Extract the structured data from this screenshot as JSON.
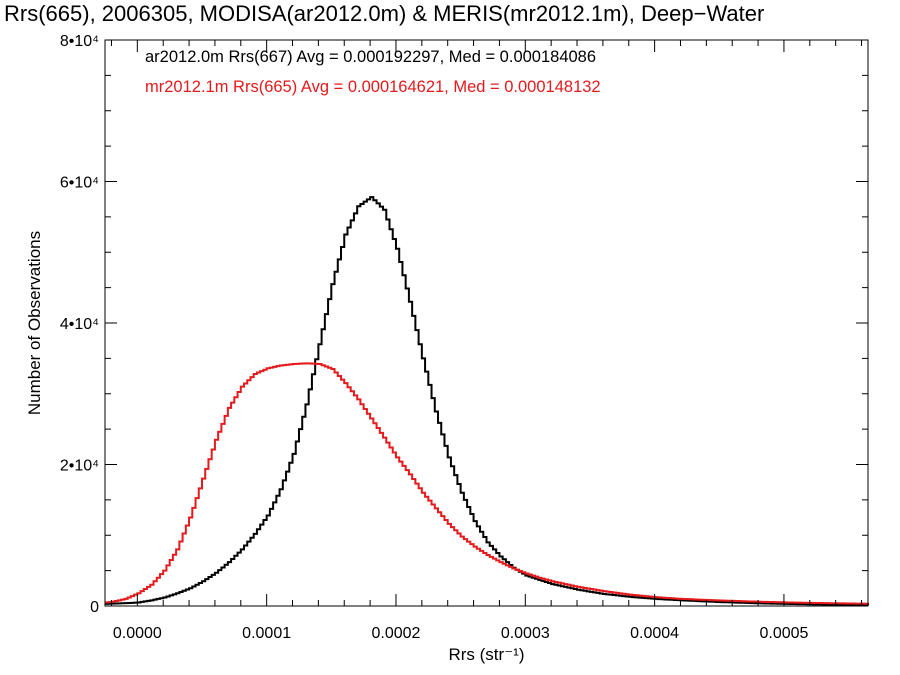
{
  "chart_data": {
    "type": "line",
    "title": "Rrs(665), 2006305, MODISA(ar2012.0m) & MERIS(mr2012.1m), Deep−Water",
    "xlabel": "Rrs (str⁻¹)",
    "ylabel": "Number of Observations",
    "xlim": [
      -2.5e-05,
      0.000565
    ],
    "ylim": [
      0,
      80000
    ],
    "x_ticks": [
      {
        "value": 0.0,
        "label": "0.0000"
      },
      {
        "value": 0.0001,
        "label": "0.0001"
      },
      {
        "value": 0.0002,
        "label": "0.0002"
      },
      {
        "value": 0.0003,
        "label": "0.0003"
      },
      {
        "value": 0.0004,
        "label": "0.0004"
      },
      {
        "value": 0.0005,
        "label": "0.0005"
      }
    ],
    "y_ticks": [
      {
        "value": 0,
        "label": "0"
      },
      {
        "value": 20000,
        "label": "2•10⁴"
      },
      {
        "value": 40000,
        "label": "4•10⁴"
      },
      {
        "value": 60000,
        "label": "6•10⁴"
      },
      {
        "value": 80000,
        "label": "8•10⁴"
      }
    ],
    "legend_placement": "top-left",
    "series": [
      {
        "name": "ar2012.0m Rrs(667) Avg = 0.000192297, Med = 0.000184086",
        "color": "#000000",
        "step": true,
        "points": [
          [
            -2.5e-05,
            300
          ],
          [
            -1e-05,
            400
          ],
          [
            0.0,
            500
          ],
          [
            1e-05,
            800
          ],
          [
            2e-05,
            1200
          ],
          [
            3e-05,
            1800
          ],
          [
            4e-05,
            2500
          ],
          [
            5e-05,
            3500
          ],
          [
            6e-05,
            4700
          ],
          [
            7e-05,
            6200
          ],
          [
            8e-05,
            8000
          ],
          [
            9e-05,
            10200
          ],
          [
            0.0001,
            12800
          ],
          [
            0.00011,
            16500
          ],
          [
            0.00012,
            21500
          ],
          [
            0.00013,
            28500
          ],
          [
            0.00014,
            37000
          ],
          [
            0.00015,
            45500
          ],
          [
            0.00016,
            52500
          ],
          [
            0.00017,
            56500
          ],
          [
            0.00018,
            57800
          ],
          [
            0.00019,
            56000
          ],
          [
            0.0002,
            50500
          ],
          [
            0.00021,
            43000
          ],
          [
            0.00022,
            35000
          ],
          [
            0.00023,
            27500
          ],
          [
            0.00024,
            21000
          ],
          [
            0.00025,
            16000
          ],
          [
            0.00026,
            12000
          ],
          [
            0.00027,
            9000
          ],
          [
            0.00028,
            7000
          ],
          [
            0.00029,
            5400
          ],
          [
            0.0003,
            4300
          ],
          [
            0.00032,
            3100
          ],
          [
            0.00034,
            2300
          ],
          [
            0.00036,
            1700
          ],
          [
            0.00038,
            1300
          ],
          [
            0.0004,
            1000
          ],
          [
            0.00042,
            800
          ],
          [
            0.00045,
            550
          ],
          [
            0.00048,
            380
          ],
          [
            0.00051,
            270
          ],
          [
            0.00054,
            190
          ],
          [
            0.000565,
            140
          ]
        ]
      },
      {
        "name": "mr2012.1m Rrs(665) Avg = 0.000164621, Med = 0.000148132",
        "color": "#e41a1c",
        "step": true,
        "points": [
          [
            -2.5e-05,
            500
          ],
          [
            -2e-05,
            600
          ],
          [
            -1e-05,
            1000
          ],
          [
            0.0,
            1800
          ],
          [
            1e-05,
            3000
          ],
          [
            2e-05,
            5000
          ],
          [
            3e-05,
            8000
          ],
          [
            4e-05,
            12500
          ],
          [
            5e-05,
            18000
          ],
          [
            6e-05,
            23500
          ],
          [
            7e-05,
            28000
          ],
          [
            8e-05,
            31000
          ],
          [
            9e-05,
            32800
          ],
          [
            0.0001,
            33600
          ],
          [
            0.00011,
            34000
          ],
          [
            0.00012,
            34200
          ],
          [
            0.00013,
            34300
          ],
          [
            0.00014,
            34200
          ],
          [
            0.00015,
            33500
          ],
          [
            0.00016,
            31500
          ],
          [
            0.00017,
            29200
          ],
          [
            0.00018,
            26500
          ],
          [
            0.00019,
            23800
          ],
          [
            0.0002,
            21000
          ],
          [
            0.00021,
            18600
          ],
          [
            0.00022,
            16000
          ],
          [
            0.00023,
            13800
          ],
          [
            0.00024,
            11600
          ],
          [
            0.00025,
            9800
          ],
          [
            0.00026,
            8400
          ],
          [
            0.00027,
            7200
          ],
          [
            0.00028,
            6200
          ],
          [
            0.00029,
            5300
          ],
          [
            0.0003,
            4600
          ],
          [
            0.00031,
            4000
          ],
          [
            0.00032,
            3500
          ],
          [
            0.00034,
            2700
          ],
          [
            0.00036,
            2100
          ],
          [
            0.00038,
            1600
          ],
          [
            0.0004,
            1250
          ],
          [
            0.00042,
            1000
          ],
          [
            0.00045,
            780
          ],
          [
            0.00048,
            600
          ],
          [
            0.00051,
            470
          ],
          [
            0.00054,
            380
          ],
          [
            0.000565,
            320
          ]
        ]
      }
    ]
  }
}
